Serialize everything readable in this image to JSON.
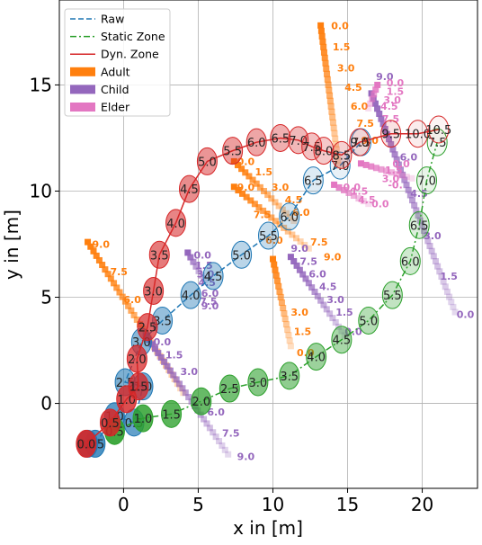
{
  "chart_data": {
    "type": "scatter",
    "xlabel": "x in [m]",
    "ylabel": "y in [m]",
    "xlim": [
      -4.3,
      23.7
    ],
    "ylim": [
      -4.0,
      19.0
    ],
    "xticks": [
      0,
      5,
      10,
      15,
      20
    ],
    "yticks": [
      0,
      5,
      10,
      15
    ],
    "grid": true,
    "legend": {
      "placement": "top-left",
      "entries": [
        {
          "label": "Raw",
          "kind": "line",
          "style": "dashed",
          "color": "#1f77b4"
        },
        {
          "label": "Static Zone",
          "kind": "line",
          "style": "dashdot",
          "color": "#2ca02c"
        },
        {
          "label": "Dyn. Zone",
          "kind": "line",
          "style": "solid",
          "color": "#d62728"
        },
        {
          "label": "Adult",
          "kind": "patch",
          "color": "#ff7f0e"
        },
        {
          "label": "Child",
          "kind": "patch",
          "color": "#9467bd"
        },
        {
          "label": "Elder",
          "kind": "patch",
          "color": "#e377c2"
        }
      ]
    },
    "zone_series": [
      {
        "name": "Raw",
        "color": "#1f77b4",
        "style": "dashed",
        "points": [
          {
            "t": "0.0",
            "x": -2.4,
            "y": -1.9
          },
          {
            "t": "0.5",
            "x": -1.9,
            "y": -1.9
          },
          {
            "t": "1.0",
            "x": -0.6,
            "y": -0.6
          },
          {
            "t": "0.5",
            "x": 0.7,
            "y": -0.9
          },
          {
            "t": "1.0",
            "x": 1.3,
            "y": 0.8
          },
          {
            "t": "2.5",
            "x": 0.1,
            "y": 1.0
          },
          {
            "t": "3.0",
            "x": 1.2,
            "y": 2.9
          },
          {
            "t": "3.5",
            "x": 2.6,
            "y": 3.9
          },
          {
            "t": "4.0",
            "x": 4.5,
            "y": 5.1
          },
          {
            "t": "4.5",
            "x": 6.0,
            "y": 6.0
          },
          {
            "t": "5.0",
            "x": 7.9,
            "y": 7.0
          },
          {
            "t": "5.5",
            "x": 9.7,
            "y": 7.9
          },
          {
            "t": "6.0",
            "x": 11.1,
            "y": 8.8
          },
          {
            "t": "6.5",
            "x": 12.7,
            "y": 10.5
          },
          {
            "t": "7.0",
            "x": 14.5,
            "y": 11.2
          },
          {
            "t": "7.5",
            "x": 15.9,
            "y": 12.3
          }
        ]
      },
      {
        "name": "Static Zone",
        "color": "#2ca02c",
        "style": "dashdot",
        "points": [
          {
            "t": "0.5",
            "x": -0.6,
            "y": -1.3
          },
          {
            "t": "1.0",
            "x": 1.3,
            "y": -0.7
          },
          {
            "t": "1.5",
            "x": 3.2,
            "y": -0.5
          },
          {
            "t": "2.0",
            "x": 5.2,
            "y": 0.1
          },
          {
            "t": "2.5",
            "x": 7.1,
            "y": 0.7
          },
          {
            "t": "3.0",
            "x": 9.0,
            "y": 1.0
          },
          {
            "t": "3.5",
            "x": 11.1,
            "y": 1.3
          },
          {
            "t": "4.0",
            "x": 12.9,
            "y": 2.2
          },
          {
            "t": "4.5",
            "x": 14.6,
            "y": 3.0
          },
          {
            "t": "5.0",
            "x": 16.4,
            "y": 3.9
          },
          {
            "t": "5.5",
            "x": 18.0,
            "y": 5.1
          },
          {
            "t": "6.0",
            "x": 19.2,
            "y": 6.7
          },
          {
            "t": "6.5",
            "x": 19.8,
            "y": 8.4
          },
          {
            "t": "7.0",
            "x": 20.3,
            "y": 10.5
          },
          {
            "t": "7.5",
            "x": 21.0,
            "y": 12.3
          }
        ]
      },
      {
        "name": "Dyn. Zone",
        "color": "#d62728",
        "style": "solid",
        "points": [
          {
            "t": "0.0",
            "x": -2.5,
            "y": -1.9
          },
          {
            "t": "0.5",
            "x": -0.9,
            "y": -0.9
          },
          {
            "t": "1.0",
            "x": 0.2,
            "y": 0.2
          },
          {
            "t": "1.5",
            "x": 1.0,
            "y": 0.8
          },
          {
            "t": "2.0",
            "x": 0.9,
            "y": 2.1
          },
          {
            "t": "2.5",
            "x": 1.6,
            "y": 3.6
          },
          {
            "t": "3.0",
            "x": 2.0,
            "y": 5.3
          },
          {
            "t": "3.5",
            "x": 2.4,
            "y": 7.0
          },
          {
            "t": "4.0",
            "x": 3.5,
            "y": 8.5
          },
          {
            "t": "4.5",
            "x": 4.4,
            "y": 10.1
          },
          {
            "t": "5.0",
            "x": 5.6,
            "y": 11.4
          },
          {
            "t": "5.5",
            "x": 7.3,
            "y": 11.9
          },
          {
            "t": "6.0",
            "x": 8.9,
            "y": 12.3
          },
          {
            "t": "6.5",
            "x": 10.5,
            "y": 12.5
          },
          {
            "t": "7.0",
            "x": 11.7,
            "y": 12.4
          },
          {
            "t": "7.5",
            "x": 12.6,
            "y": 12.1
          },
          {
            "t": "8.0",
            "x": 13.4,
            "y": 11.9
          },
          {
            "t": "8.5",
            "x": 14.6,
            "y": 11.7
          },
          {
            "t": "9.0",
            "x": 15.8,
            "y": 12.3
          },
          {
            "t": "9.5",
            "x": 17.9,
            "y": 12.7
          },
          {
            "t": "10.0",
            "x": 19.7,
            "y": 12.7
          },
          {
            "t": "10.5",
            "x": 21.1,
            "y": 12.9
          }
        ]
      }
    ],
    "agent_tracks": [
      {
        "group": "Adult",
        "color": "#ff7f0e",
        "start": [
          13.2,
          17.8
        ],
        "end": [
          14.4,
          11.2
        ],
        "labels": [
          {
            "t": "0.0",
            "x": 13.9,
            "y": 17.8
          },
          {
            "t": "1.5",
            "x": 14.0,
            "y": 16.8
          },
          {
            "t": "3.0",
            "x": 14.3,
            "y": 15.8
          },
          {
            "t": "4.5",
            "x": 14.8,
            "y": 14.9
          },
          {
            "t": "6.0",
            "x": 15.2,
            "y": 14.0
          },
          {
            "t": "7.5",
            "x": 15.6,
            "y": 13.2
          },
          {
            "t": "9.0",
            "x": 15.9,
            "y": 12.4
          }
        ]
      },
      {
        "group": "Adult",
        "color": "#ff7f0e",
        "start": [
          7.4,
          11.4
        ],
        "end": [
          11.4,
          8.6
        ],
        "labels": [
          {
            "t": "0.0",
            "x": 7.6,
            "y": 11.4
          },
          {
            "t": "1.5",
            "x": 8.8,
            "y": 10.9
          },
          {
            "t": "3.0",
            "x": 9.9,
            "y": 10.2
          },
          {
            "t": "4.5",
            "x": 10.8,
            "y": 9.6
          },
          {
            "t": "6.0",
            "x": 11.3,
            "y": 9.0
          }
        ]
      },
      {
        "group": "Adult",
        "color": "#ff7f0e",
        "start": [
          7.4,
          10.2
        ],
        "end": [
          12.4,
          7.3
        ],
        "labels": [
          {
            "t": "9.0",
            "x": 7.6,
            "y": 10.2
          },
          {
            "t": "7.5",
            "x": 8.7,
            "y": 8.9
          },
          {
            "t": "6.0",
            "x": 9.5,
            "y": 7.7
          },
          {
            "t": "7.5",
            "x": 12.5,
            "y": 7.6
          },
          {
            "t": "9.0",
            "x": 13.4,
            "y": 6.9
          }
        ]
      },
      {
        "group": "Adult",
        "color": "#ff7f0e",
        "start": [
          -2.4,
          7.6
        ],
        "end": [
          4.0,
          0.5
        ],
        "labels": [
          {
            "t": "9.0",
            "x": -2.1,
            "y": 7.5
          },
          {
            "t": "7.5",
            "x": -0.9,
            "y": 6.2
          },
          {
            "t": "6.0",
            "x": 0.0,
            "y": 4.9
          }
        ]
      },
      {
        "group": "Adult",
        "color": "#ff7f0e",
        "start": [
          10.0,
          6.8
        ],
        "end": [
          11.2,
          2.7
        ],
        "labels": [
          {
            "t": "3.0",
            "x": 11.2,
            "y": 4.3
          },
          {
            "t": "1.5",
            "x": 11.4,
            "y": 3.4
          },
          {
            "t": "0.0",
            "x": 11.6,
            "y": 2.4
          }
        ]
      },
      {
        "group": "Child",
        "color": "#9467bd",
        "start": [
          4.3,
          7.1
        ],
        "end": [
          5.4,
          5.8
        ],
        "labels": [
          {
            "t": "0.0",
            "x": 4.7,
            "y": 7.0
          },
          {
            "t": "1.5",
            "x": 4.8,
            "y": 6.5
          },
          {
            "t": "3.0",
            "x": 4.9,
            "y": 6.1
          },
          {
            "t": "4.5",
            "x": 5.0,
            "y": 5.7
          },
          {
            "t": "6.0",
            "x": 5.2,
            "y": 5.2
          },
          {
            "t": "7.5",
            "x": 5.1,
            "y": 4.8
          },
          {
            "t": "9.0",
            "x": 5.2,
            "y": 4.6
          }
        ]
      },
      {
        "group": "Child",
        "color": "#9467bd",
        "start": [
          11.2,
          6.9
        ],
        "end": [
          14.8,
          3.2
        ],
        "labels": [
          {
            "t": "9.0",
            "x": 11.2,
            "y": 7.3
          },
          {
            "t": "7.5",
            "x": 11.8,
            "y": 6.7
          },
          {
            "t": "6.0",
            "x": 12.4,
            "y": 6.1
          },
          {
            "t": "4.5",
            "x": 13.1,
            "y": 5.5
          },
          {
            "t": "3.0",
            "x": 13.6,
            "y": 4.9
          },
          {
            "t": "1.5",
            "x": 14.2,
            "y": 4.3
          },
          {
            "t": "0.0",
            "x": 14.8,
            "y": 3.4
          }
        ]
      },
      {
        "group": "Child",
        "color": "#9467bd",
        "start": [
          1.5,
          3.2
        ],
        "end": [
          7.0,
          -2.4
        ],
        "labels": [
          {
            "t": "0.0",
            "x": 2.0,
            "y": 2.9
          },
          {
            "t": "1.5",
            "x": 2.8,
            "y": 2.3
          },
          {
            "t": "3.0",
            "x": 3.8,
            "y": 1.5
          },
          {
            "t": "6.0",
            "x": 5.6,
            "y": -0.4
          },
          {
            "t": "7.5",
            "x": 6.6,
            "y": -1.4
          },
          {
            "t": "9.0",
            "x": 7.6,
            "y": -2.5
          }
        ]
      },
      {
        "group": "Child",
        "color": "#9467bd",
        "start": [
          16.6,
          14.6
        ],
        "end": [
          22.2,
          4.3
        ],
        "labels": [
          {
            "t": "9.0",
            "x": 16.9,
            "y": 15.4
          },
          {
            "t": "6.0",
            "x": 18.5,
            "y": 11.6
          },
          {
            "t": "4.5",
            "x": 19.2,
            "y": 9.9
          },
          {
            "t": "3.0",
            "x": 20.1,
            "y": 7.9
          },
          {
            "t": "1.5",
            "x": 21.2,
            "y": 6.0
          },
          {
            "t": "0.0",
            "x": 22.3,
            "y": 4.2
          }
        ]
      },
      {
        "group": "Elder",
        "color": "#e377c2",
        "start": [
          17.0,
          15.0
        ],
        "end": [
          16.4,
          13.9
        ],
        "labels": [
          {
            "t": "0.0",
            "x": 17.6,
            "y": 15.1
          },
          {
            "t": "1.5",
            "x": 17.6,
            "y": 14.7
          },
          {
            "t": "3.0",
            "x": 17.4,
            "y": 14.3
          },
          {
            "t": "4.5",
            "x": 17.2,
            "y": 14.0
          },
          {
            "t": "7.5",
            "x": 17.3,
            "y": 13.4
          }
        ]
      },
      {
        "group": "Elder",
        "color": "#e377c2",
        "start": [
          15.9,
          11.3
        ],
        "end": [
          19.3,
          10.6
        ],
        "labels": [
          {
            "t": "0.0",
            "x": 18.0,
            "y": 11.3
          },
          {
            "t": "1.5",
            "x": 17.5,
            "y": 11.0
          },
          {
            "t": "3.0",
            "x": 17.3,
            "y": 10.6
          },
          {
            "t": "-0.",
            "x": 17.7,
            "y": 10.3
          }
        ]
      },
      {
        "group": "Elder",
        "color": "#e377c2",
        "start": [
          14.1,
          10.3
        ],
        "end": [
          16.4,
          9.4
        ],
        "labels": [
          {
            "t": "0.0",
            "x": 14.7,
            "y": 10.2
          },
          {
            "t": "1.5",
            "x": 15.2,
            "y": 10.0
          },
          {
            "t": "4.5",
            "x": 15.7,
            "y": 9.6
          },
          {
            "t": "0.0",
            "x": 16.6,
            "y": 9.4
          }
        ]
      }
    ]
  }
}
